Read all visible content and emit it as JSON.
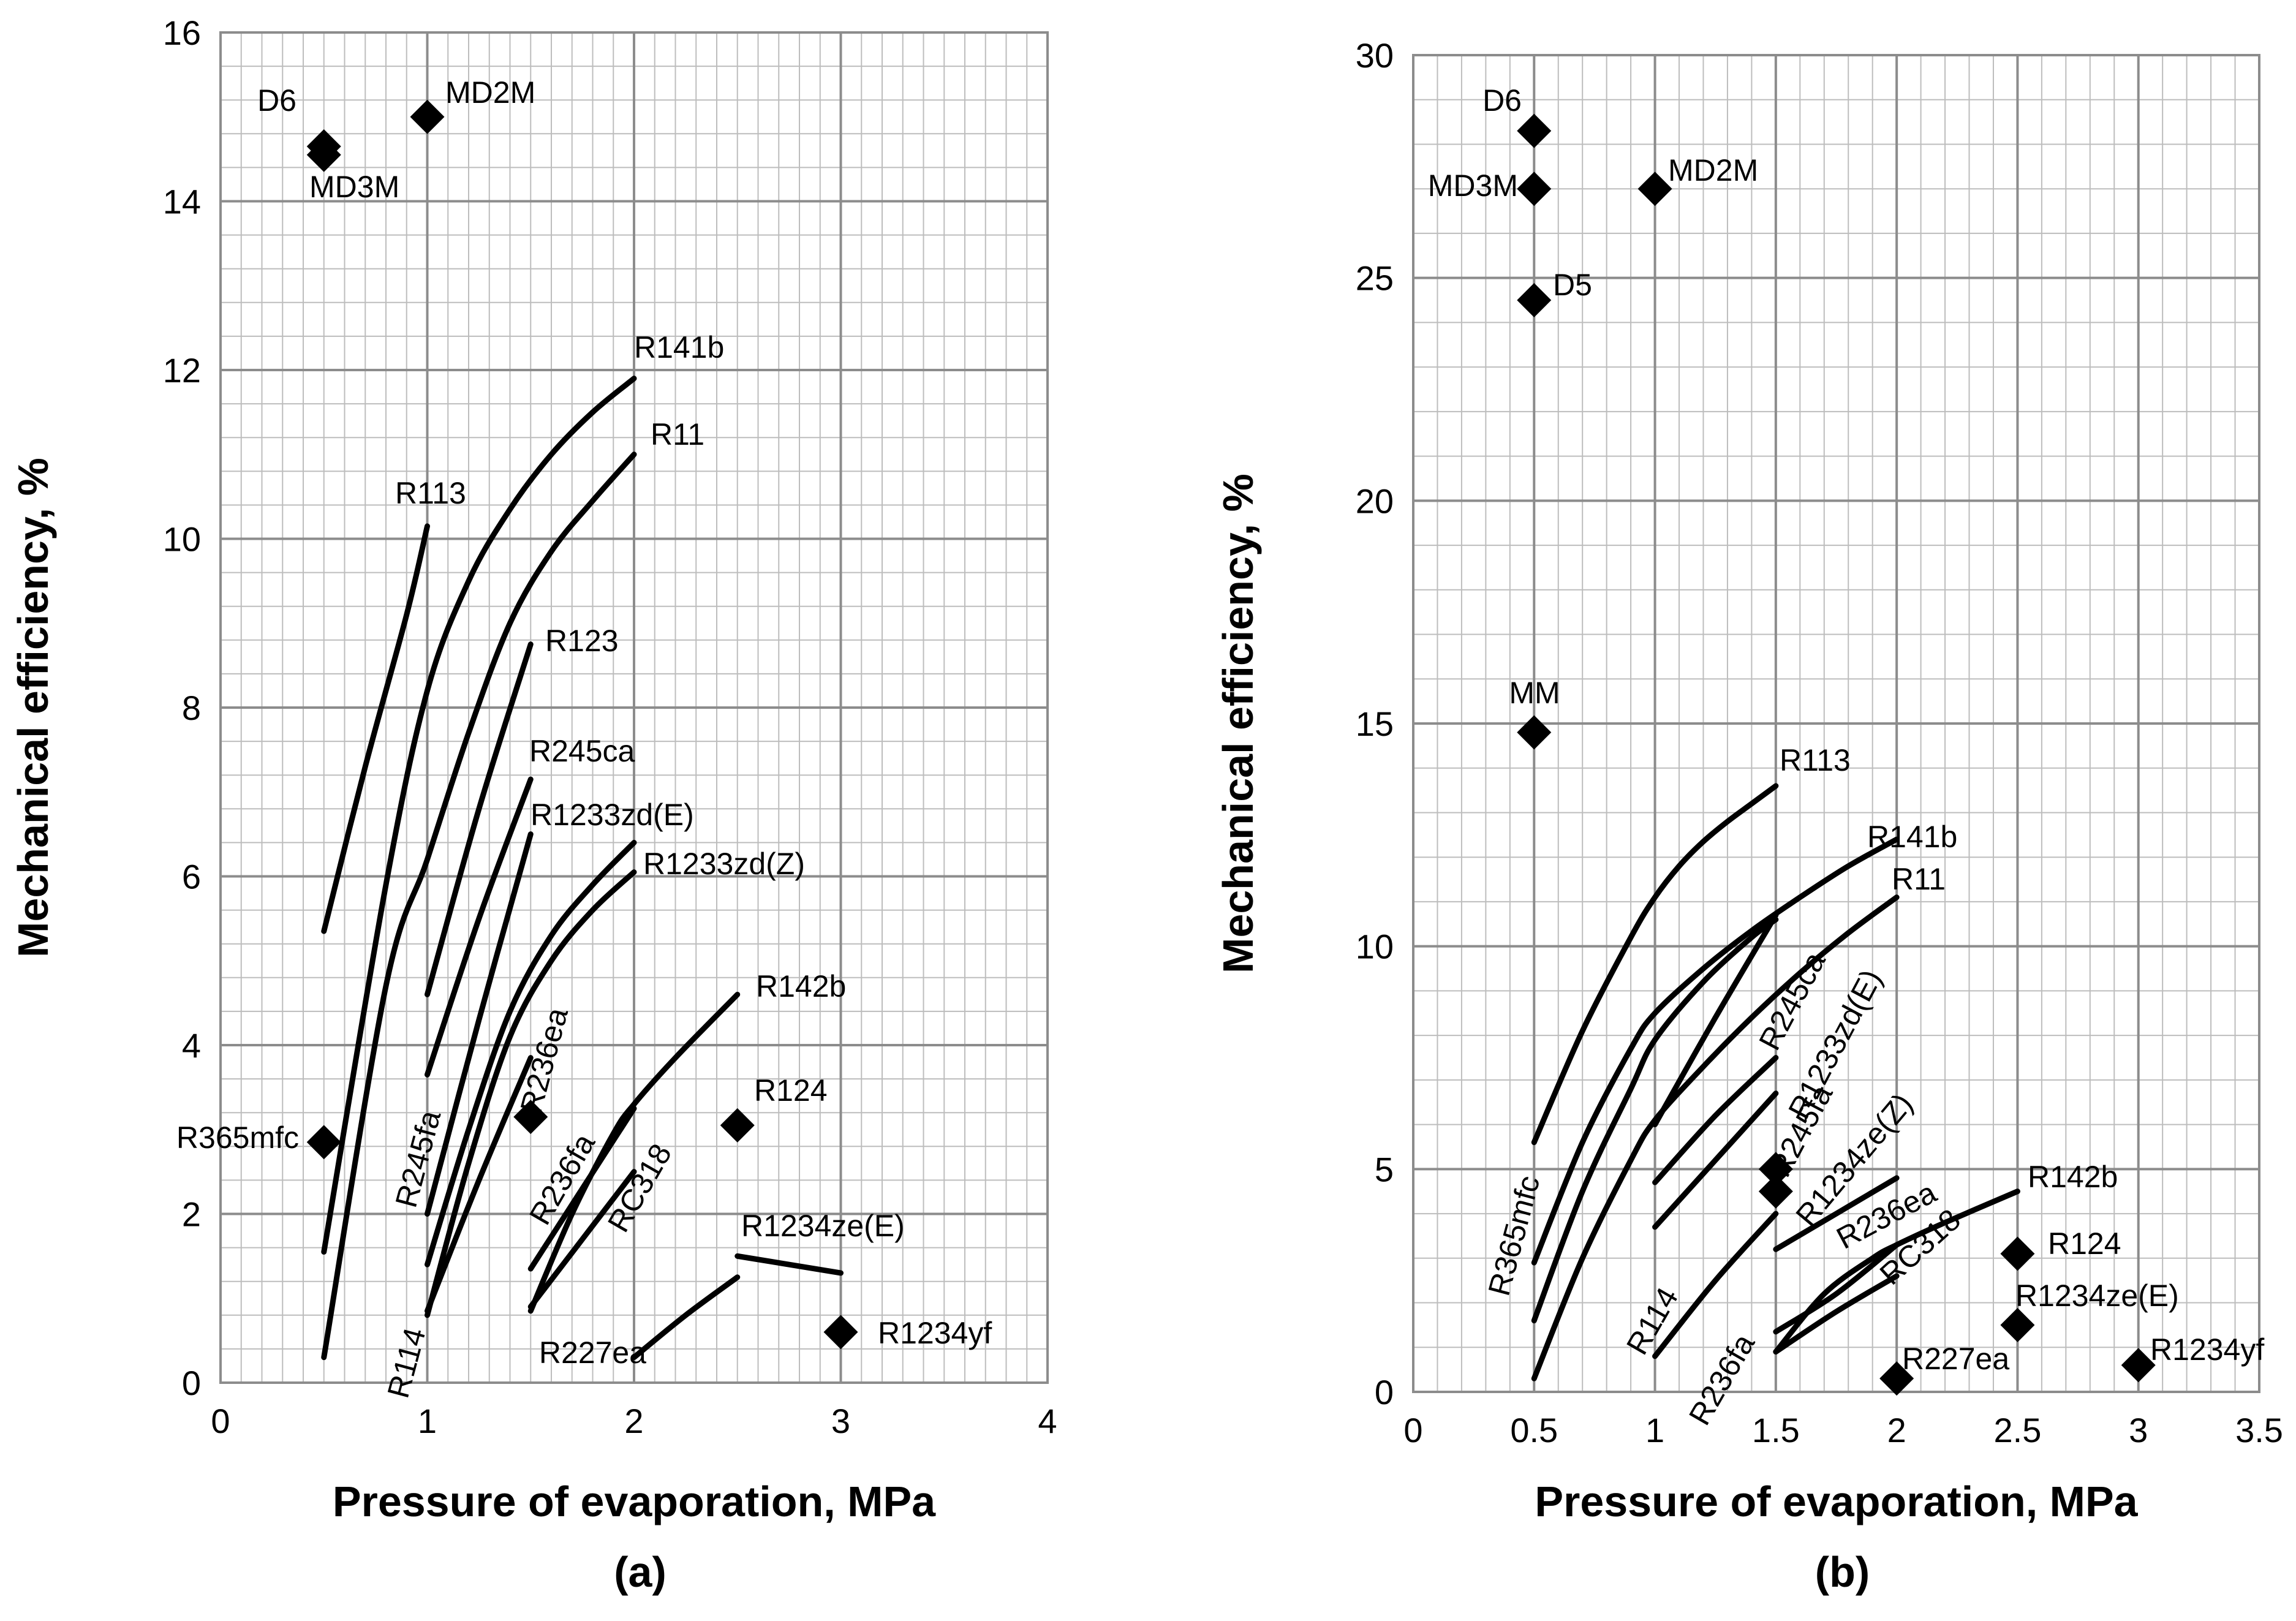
{
  "chart_data": [
    {
      "type": "line",
      "panel": "(a)",
      "title": "",
      "xlabel": "Pressure of evaporation, MPa",
      "ylabel": "Mechanical efficiency, %",
      "xlim": [
        0,
        4
      ],
      "ylim": [
        0,
        16
      ],
      "x_ticks": [
        0,
        1,
        2,
        3,
        4
      ],
      "y_ticks": [
        0,
        2,
        4,
        6,
        8,
        10,
        12,
        14,
        16
      ],
      "minor_x_step": 0.1,
      "minor_y_step": 0.4,
      "grid": true,
      "series": [
        {
          "name": "R113",
          "x": [
            0.5,
            0.7,
            0.9,
            1.0
          ],
          "y": [
            5.35,
            7.3,
            9.1,
            10.15
          ]
        },
        {
          "name": "R141b",
          "x": [
            0.5,
            0.8,
            1.0,
            1.2,
            1.4,
            1.6,
            1.8,
            2.0
          ],
          "y": [
            1.55,
            5.9,
            8.2,
            9.5,
            10.35,
            11.0,
            11.5,
            11.9
          ]
        },
        {
          "name": "R11",
          "x": [
            0.5,
            0.8,
            1.0,
            1.2,
            1.4,
            1.6,
            1.8,
            2.0
          ],
          "y": [
            0.3,
            4.7,
            6.2,
            7.7,
            9.0,
            9.85,
            10.45,
            11.0
          ]
        },
        {
          "name": "R123",
          "x": [
            1.0,
            1.25,
            1.5
          ],
          "y": [
            4.6,
            6.8,
            8.75
          ]
        },
        {
          "name": "R245ca",
          "x": [
            1.0,
            1.25,
            1.5
          ],
          "y": [
            3.65,
            5.5,
            7.15
          ]
        },
        {
          "name": "R1233zd(E)",
          "x": [
            1.0,
            1.25,
            1.5
          ],
          "y": [
            2.0,
            4.3,
            6.5
          ]
        },
        {
          "name": "R1233zd(Z)",
          "x": [
            1.0,
            1.2,
            1.4,
            1.6,
            1.8,
            2.0
          ],
          "y": [
            1.4,
            3.0,
            4.4,
            5.3,
            5.9,
            6.4
          ]
        },
        {
          "name": "R245fa",
          "x": [
            1.0,
            1.2,
            1.4,
            1.6,
            1.8,
            2.0
          ],
          "y": [
            0.8,
            2.6,
            4.1,
            5.0,
            5.6,
            6.05
          ]
        },
        {
          "name": "R236ea",
          "x": [
            1.0,
            1.25,
            1.5
          ],
          "y": [
            0.85,
            2.4,
            3.85
          ]
        },
        {
          "name": "R142b",
          "x": [
            1.5,
            1.7,
            1.9,
            2.0,
            2.2,
            2.5
          ],
          "y": [
            0.85,
            2.0,
            2.95,
            3.3,
            3.85,
            4.6
          ]
        },
        {
          "name": "R236fa",
          "x": [
            1.5,
            1.75,
            2.0
          ],
          "y": [
            1.35,
            2.3,
            3.25
          ]
        },
        {
          "name": "RC318",
          "x": [
            1.5,
            1.75,
            2.0
          ],
          "y": [
            0.9,
            1.7,
            2.5
          ]
        },
        {
          "name": "R227ea",
          "x": [
            2.0,
            2.25,
            2.5
          ],
          "y": [
            0.3,
            0.8,
            1.25
          ]
        },
        {
          "name": "R1234ze(E)",
          "x": [
            2.5,
            3.0
          ],
          "y": [
            1.5,
            1.3
          ]
        }
      ],
      "points": [
        {
          "name": "D6",
          "x": 0.5,
          "y": 14.65
        },
        {
          "name": "MD3M",
          "x": 0.5,
          "y": 14.55
        },
        {
          "name": "MD2M",
          "x": 1.0,
          "y": 15.0
        },
        {
          "name": "R365mfc",
          "x": 0.5,
          "y": 2.85
        },
        {
          "name": "R236ea",
          "x": 1.5,
          "y": 3.15
        },
        {
          "name": "R124",
          "x": 2.5,
          "y": 3.05
        },
        {
          "name": "R1234yf",
          "x": 3.0,
          "y": 0.6
        }
      ],
      "labels": [
        {
          "text": "D6"
        },
        {
          "text": "MD3M"
        },
        {
          "text": "MD2M"
        },
        {
          "text": "R141b"
        },
        {
          "text": "R11"
        },
        {
          "text": "R113"
        },
        {
          "text": "R123"
        },
        {
          "text": "R245ca"
        },
        {
          "text": "R1233zd(E)"
        },
        {
          "text": "R1233zd(Z)"
        },
        {
          "text": "R142b"
        },
        {
          "text": "R365mfc"
        },
        {
          "text": "R236ea"
        },
        {
          "text": "R124"
        },
        {
          "text": "R245fa"
        },
        {
          "text": "R236fa"
        },
        {
          "text": "RC318"
        },
        {
          "text": "R1234ze(E)"
        },
        {
          "text": "R227ea"
        },
        {
          "text": "R1234yf"
        },
        {
          "text": "R114"
        }
      ]
    },
    {
      "type": "line",
      "panel": "(b)",
      "title": "",
      "xlabel": "Pressure of evaporation, MPa",
      "ylabel": "Mechanical efficiency, %",
      "xlim": [
        0,
        3.5
      ],
      "ylim": [
        0,
        30
      ],
      "x_ticks": [
        0,
        0.5,
        1,
        1.5,
        2,
        2.5,
        3,
        3.5
      ],
      "y_ticks": [
        0,
        5,
        10,
        15,
        20,
        25,
        30
      ],
      "minor_x_step": 0.1,
      "minor_y_step": 1,
      "grid": true,
      "series": [
        {
          "name": "R113",
          "x": [
            0.5,
            0.7,
            0.9,
            1.0,
            1.1,
            1.2,
            1.3,
            1.4,
            1.5
          ],
          "y": [
            5.6,
            8.1,
            10.2,
            11.1,
            11.8,
            12.35,
            12.8,
            13.2,
            13.6
          ]
        },
        {
          "name": "R141b",
          "x": [
            0.5,
            0.7,
            0.9,
            1.0,
            1.2,
            1.4,
            1.6,
            1.8,
            2.0
          ],
          "y": [
            2.9,
            5.6,
            7.7,
            8.5,
            9.5,
            10.35,
            11.1,
            11.8,
            12.4
          ]
        },
        {
          "name": "R365mfc",
          "x": [
            0.5,
            0.7,
            0.9,
            1.0,
            1.2,
            1.4,
            1.5
          ],
          "y": [
            1.6,
            4.5,
            6.8,
            7.9,
            9.2,
            10.2,
            10.6
          ]
        },
        {
          "name": "R11",
          "x": [
            0.5,
            0.7,
            0.9,
            1.0,
            1.2,
            1.4,
            1.6,
            1.8,
            2.0
          ],
          "y": [
            0.3,
            3.0,
            5.2,
            6.1,
            7.3,
            8.4,
            9.4,
            10.3,
            11.1
          ]
        },
        {
          "name": "R123",
          "x": [
            1.0,
            1.25,
            1.5
          ],
          "y": [
            6.0,
            8.4,
            10.7
          ]
        },
        {
          "name": "R245ca",
          "x": [
            1.0,
            1.25,
            1.5
          ],
          "y": [
            4.7,
            6.2,
            7.5
          ]
        },
        {
          "name": "R1233zd(E)",
          "x": [
            1.0,
            1.25,
            1.5
          ],
          "y": [
            3.7,
            5.2,
            6.7
          ]
        },
        {
          "name": "R1234ze(Z)",
          "x": [
            1.5,
            1.75,
            2.0
          ],
          "y": [
            3.2,
            4.0,
            4.8
          ]
        },
        {
          "name": "R114",
          "x": [
            1.0,
            1.25,
            1.5
          ],
          "y": [
            0.8,
            2.5,
            4.0
          ]
        },
        {
          "name": "R142b",
          "x": [
            1.5,
            1.7,
            1.9,
            2.0,
            2.2,
            2.5
          ],
          "y": [
            0.9,
            2.2,
            3.0,
            3.3,
            3.8,
            4.5
          ]
        },
        {
          "name": "R236fa",
          "x": [
            1.5,
            1.75,
            2.0
          ],
          "y": [
            1.35,
            2.2,
            3.3
          ]
        },
        {
          "name": "RC318",
          "x": [
            1.5,
            1.75,
            2.0
          ],
          "y": [
            0.9,
            1.8,
            2.6
          ]
        }
      ],
      "points": [
        {
          "name": "D6",
          "x": 0.5,
          "y": 28.3
        },
        {
          "name": "MD3M",
          "x": 0.5,
          "y": 27.0
        },
        {
          "name": "MD2M",
          "x": 1.0,
          "y": 27.0
        },
        {
          "name": "D5",
          "x": 0.5,
          "y": 24.5
        },
        {
          "name": "MM",
          "x": 0.5,
          "y": 14.8
        },
        {
          "name": "R245fa",
          "x": 1.5,
          "y": 5.0
        },
        {
          "name": "R245fa",
          "x": 1.5,
          "y": 4.5
        },
        {
          "name": "R124",
          "x": 2.5,
          "y": 3.1
        },
        {
          "name": "R1234ze(E)",
          "x": 2.5,
          "y": 1.5
        },
        {
          "name": "R227ea",
          "x": 2.0,
          "y": 0.3
        },
        {
          "name": "R1234yf",
          "x": 3.0,
          "y": 0.6
        }
      ],
      "labels": [
        {
          "text": "D6"
        },
        {
          "text": "MD3M"
        },
        {
          "text": "MD2M"
        },
        {
          "text": "D5"
        },
        {
          "text": "MM"
        },
        {
          "text": "R113"
        },
        {
          "text": "R141b"
        },
        {
          "text": "R11"
        },
        {
          "text": "R245ca"
        },
        {
          "text": "R1233zd(E)"
        },
        {
          "text": "R245fa"
        },
        {
          "text": "R1234ze(Z)"
        },
        {
          "text": "R236ea"
        },
        {
          "text": "R142b"
        },
        {
          "text": "R124"
        },
        {
          "text": "R1234ze(E)"
        },
        {
          "text": "R1234yf"
        },
        {
          "text": "R365mfc"
        },
        {
          "text": "R114"
        },
        {
          "text": "RC318"
        },
        {
          "text": "R236fa"
        },
        {
          "text": "R227ea"
        }
      ]
    }
  ]
}
